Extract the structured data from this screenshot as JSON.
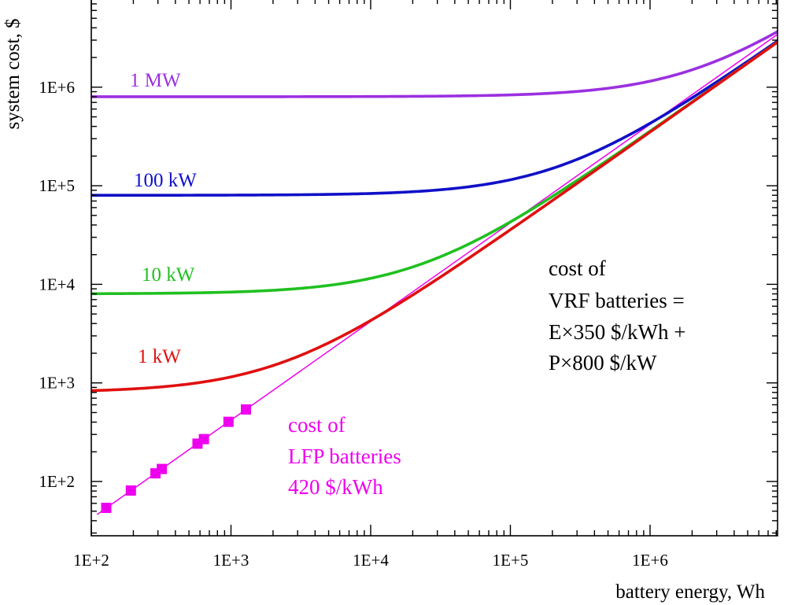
{
  "chart_data": {
    "type": "line",
    "xscale": "log",
    "yscale": "log",
    "xlabel": "battery energy, Wh",
    "ylabel": "system cost, $",
    "xlim": [
      100,
      8500000
    ],
    "ylim": [
      30,
      7000000
    ],
    "xticks": [
      {
        "value": 100,
        "label": "1E+2"
      },
      {
        "value": 1000,
        "label": "1E+3"
      },
      {
        "value": 10000,
        "label": "1E+4"
      },
      {
        "value": 100000,
        "label": "1E+5"
      },
      {
        "value": 1000000,
        "label": "1E+6"
      }
    ],
    "yticks": [
      {
        "value": 100,
        "label": "1E+2"
      },
      {
        "value": 1000,
        "label": "1E+3"
      },
      {
        "value": 10000,
        "label": "1E+4"
      },
      {
        "value": 100000,
        "label": "1E+5"
      },
      {
        "value": 1000000,
        "label": "1E+6"
      }
    ],
    "model": {
      "energy_cost_per_wh": 0.35,
      "power_cost_per_w": 0.8
    },
    "series": [
      {
        "name": "1 MW",
        "power_w": 1000000,
        "color": "#9b30e0"
      },
      {
        "name": "100 kW",
        "power_w": 100000,
        "color": "#1010c8"
      },
      {
        "name": "10 kW",
        "power_w": 10000,
        "color": "#20c020"
      },
      {
        "name": "1 kW",
        "power_w": 1000,
        "color": "#e01010"
      }
    ],
    "lfp_line": {
      "cost_per_wh": 0.42,
      "color": "#ee00ee"
    },
    "lfp_points": {
      "name": "LFP batteries",
      "x": [
        128,
        192,
        288,
        320,
        576,
        640,
        960,
        1280
      ],
      "y": [
        54,
        81,
        121,
        134,
        242,
        269,
        403,
        538
      ]
    },
    "annotations": {
      "vrf": [
        "cost of",
        "VRF batteries =",
        "E×350 $/kWh +",
        "P×800 $/kW"
      ],
      "lfp": [
        "cost of",
        "LFP batteries",
        "420 $/kWh"
      ]
    }
  }
}
